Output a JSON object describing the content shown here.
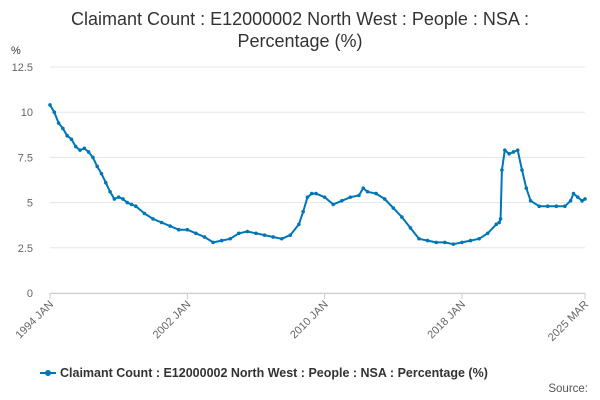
{
  "chart_data": {
    "type": "line",
    "title_line1": "Claimant Count : E12000002 North West : People : NSA :",
    "title_line2": "Percentage (%)",
    "ylabel": "%",
    "ylim": [
      0,
      12.5
    ],
    "yticks": [
      0,
      2.5,
      5,
      7.5,
      10,
      12.5
    ],
    "ytick_labels": [
      "0",
      "2.5",
      "5",
      "7.5",
      "10",
      "12.5"
    ],
    "xlim": [
      1994.0,
      2025.17
    ],
    "xticks": [
      1994.0,
      2002.0,
      2010.0,
      2018.0,
      2025.17
    ],
    "xtick_labels": [
      "1994 JAN",
      "2002 JAN",
      "2010 JAN",
      "2018 JAN",
      "2025 MAR"
    ],
    "grid": true,
    "legend_position": "bottom",
    "series": [
      {
        "name": "Claimant Count : E12000002 North West : People : NSA : Percentage (%)",
        "color": "#0076b6",
        "x": [
          1994.0,
          1994.25,
          1994.5,
          1994.75,
          1995.0,
          1995.25,
          1995.5,
          1995.75,
          1996.0,
          1996.25,
          1996.5,
          1996.75,
          1997.0,
          1997.25,
          1997.5,
          1997.75,
          1998.0,
          1998.25,
          1998.5,
          1998.75,
          1999.0,
          1999.5,
          2000.0,
          2000.5,
          2001.0,
          2001.5,
          2002.0,
          2002.5,
          2003.0,
          2003.5,
          2004.0,
          2004.5,
          2005.0,
          2005.5,
          2006.0,
          2006.5,
          2007.0,
          2007.5,
          2008.0,
          2008.5,
          2008.75,
          2009.0,
          2009.25,
          2009.5,
          2010.0,
          2010.5,
          2011.0,
          2011.5,
          2012.0,
          2012.25,
          2012.5,
          2013.0,
          2013.5,
          2014.0,
          2014.5,
          2015.0,
          2015.5,
          2016.0,
          2016.5,
          2017.0,
          2017.5,
          2018.0,
          2018.5,
          2019.0,
          2019.5,
          2020.0,
          2020.17,
          2020.25,
          2020.33,
          2020.5,
          2020.75,
          2021.0,
          2021.25,
          2021.5,
          2021.75,
          2022.0,
          2022.5,
          2023.0,
          2023.5,
          2024.0,
          2024.33,
          2024.5,
          2024.75,
          2025.0,
          2025.17
        ],
        "values": [
          10.4,
          10.0,
          9.4,
          9.1,
          8.7,
          8.5,
          8.1,
          7.9,
          8.0,
          7.8,
          7.5,
          7.0,
          6.6,
          6.1,
          5.6,
          5.2,
          5.3,
          5.2,
          5.0,
          4.9,
          4.8,
          4.4,
          4.1,
          3.9,
          3.7,
          3.5,
          3.5,
          3.3,
          3.1,
          2.8,
          2.9,
          3.0,
          3.3,
          3.4,
          3.3,
          3.2,
          3.1,
          3.0,
          3.2,
          3.8,
          4.5,
          5.3,
          5.5,
          5.5,
          5.3,
          4.9,
          5.1,
          5.3,
          5.4,
          5.8,
          5.6,
          5.5,
          5.2,
          4.7,
          4.2,
          3.6,
          3.0,
          2.9,
          2.8,
          2.8,
          2.7,
          2.8,
          2.9,
          3.0,
          3.3,
          3.8,
          3.9,
          4.1,
          6.8,
          7.9,
          7.7,
          7.8,
          7.9,
          6.8,
          5.8,
          5.1,
          4.8,
          4.8,
          4.8,
          4.8,
          5.1,
          5.5,
          5.3,
          5.1,
          5.2
        ]
      }
    ]
  },
  "legend": {
    "label": "Claimant Count : E12000002 North West : People : NSA : Percentage (%)"
  },
  "source_label": "Source:",
  "colors": {
    "series": "#0076b6",
    "grid": "#e6e6e6",
    "axis": "#cccccc"
  }
}
